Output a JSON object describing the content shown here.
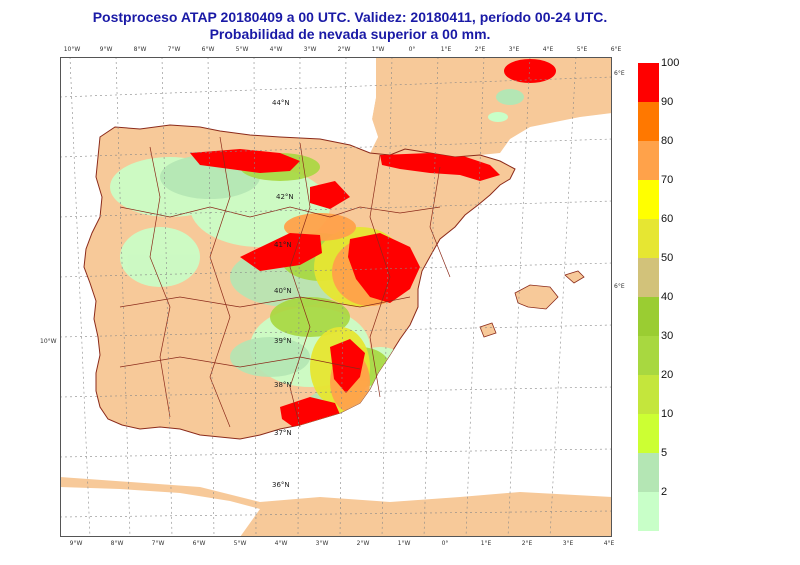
{
  "header": {
    "title_line1": "Postproceso ATAP 20180409 a 00 UTC. Validez: 20180411, período 00-24 UTC.",
    "title_line2": "Probabilidad de nevada superior a 00 mm."
  },
  "map": {
    "top_lon_ticks": [
      "10°W",
      "9°W",
      "8°W",
      "7°W",
      "6°W",
      "5°W",
      "4°W",
      "3°W",
      "2°W",
      "1°W",
      "0°",
      "1°E",
      "2°E",
      "3°E",
      "4°E",
      "5°E",
      "6°E"
    ],
    "bottom_lon_ticks": [
      "9°W",
      "8°W",
      "7°W",
      "6°W",
      "5°W",
      "4°W",
      "3°W",
      "2°W",
      "1°W",
      "0°",
      "1°E",
      "2°E",
      "3°E",
      "4°E"
    ],
    "left_lon_tick": "10°W",
    "right_lon_ticks": [
      "6°E",
      "6°E"
    ],
    "lat_labels": [
      "44°N",
      "42°N",
      "41°N",
      "40°N",
      "39°N",
      "38°N",
      "37°N",
      "36°N"
    ],
    "colors": {
      "sea": "#ffffff",
      "land": "#f7c999",
      "border": "#8b2a1a",
      "graticule": "#777777"
    }
  },
  "legend": {
    "items": [
      {
        "label": "100",
        "color": "#ff0000"
      },
      {
        "label": "90",
        "color": "#ff7800"
      },
      {
        "label": "80",
        "color": "#ffa24a"
      },
      {
        "label": "70",
        "color": "#ffff00"
      },
      {
        "label": "60",
        "color": "#e6e632"
      },
      {
        "label": "50",
        "color": "#d2c27a"
      },
      {
        "label": "40",
        "color": "#9acd32"
      },
      {
        "label": "30",
        "color": "#a8d840"
      },
      {
        "label": "20",
        "color": "#c4e63c"
      },
      {
        "label": "10",
        "color": "#ccff33"
      },
      {
        "label": "5",
        "color": "#b4e6b4"
      },
      {
        "label": "2",
        "color": "#c8ffc8"
      }
    ]
  }
}
